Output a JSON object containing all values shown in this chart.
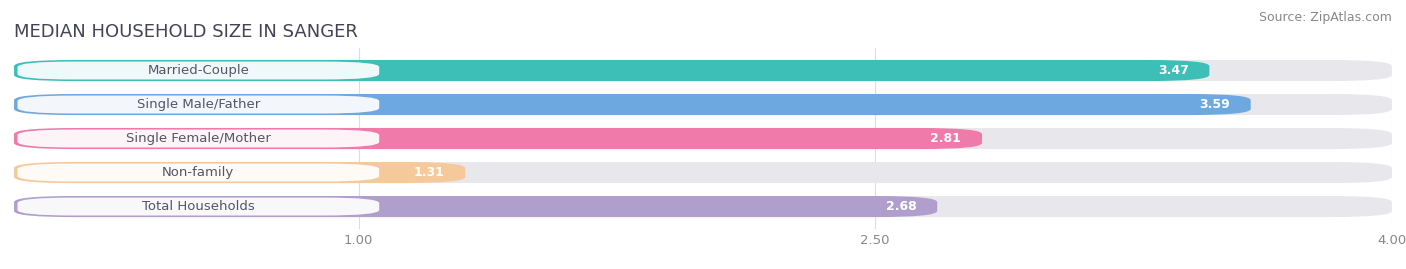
{
  "title": "MEDIAN HOUSEHOLD SIZE IN SANGER",
  "source": "Source: ZipAtlas.com",
  "categories": [
    "Married-Couple",
    "Single Male/Father",
    "Single Female/Mother",
    "Non-family",
    "Total Households"
  ],
  "values": [
    3.47,
    3.59,
    2.81,
    1.31,
    2.68
  ],
  "bar_colors": [
    "#3dbfb8",
    "#6ea8e0",
    "#f07aaa",
    "#f5c99a",
    "#b09fcc"
  ],
  "xmin": 0.0,
  "xmax": 4.0,
  "xticks": [
    1.0,
    2.5,
    4.0
  ],
  "background_color": "#ffffff",
  "bar_bg_color": "#e8e8ec",
  "title_fontsize": 13,
  "label_fontsize": 9.5,
  "value_fontsize": 9,
  "source_fontsize": 9,
  "title_color": "#444455",
  "source_color": "#888888",
  "label_text_color": "#555566",
  "value_text_color": "#ffffff",
  "tick_color": "#888888",
  "grid_color": "#dddddd"
}
